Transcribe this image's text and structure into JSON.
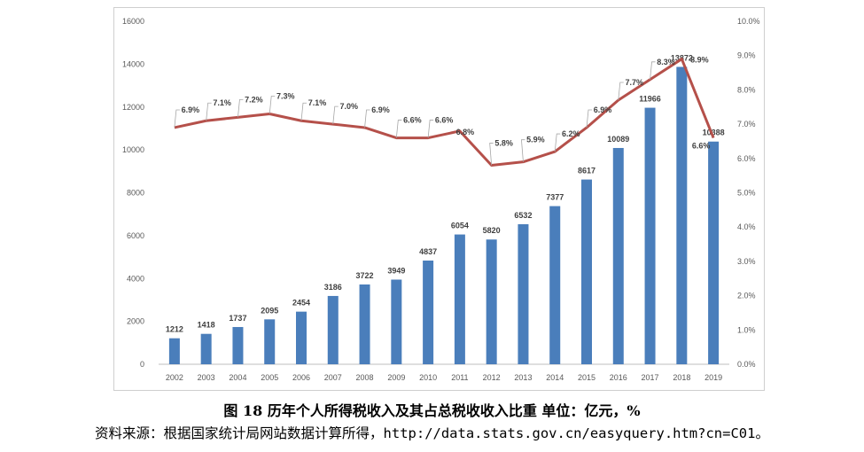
{
  "chart_data": {
    "type": "bar+line",
    "categories": [
      "2002",
      "2003",
      "2004",
      "2005",
      "2006",
      "2007",
      "2008",
      "2009",
      "2010",
      "2011",
      "2012",
      "2013",
      "2014",
      "2015",
      "2016",
      "2017",
      "2018",
      "2019"
    ],
    "series": [
      {
        "type": "bar",
        "axis": "left",
        "values": [
          1212,
          1418,
          1737,
          2095,
          2454,
          3186,
          3722,
          3949,
          4837,
          6054,
          5820,
          6532,
          7377,
          8617,
          10089,
          11966,
          13872,
          10388
        ],
        "color": "#4a7ebb"
      },
      {
        "type": "line",
        "axis": "right",
        "values": [
          6.9,
          7.1,
          7.2,
          7.3,
          7.1,
          7.0,
          6.9,
          6.6,
          6.6,
          6.8,
          5.8,
          5.9,
          6.2,
          6.9,
          7.7,
          8.3,
          8.9,
          6.6
        ],
        "labels": [
          "6.9%",
          "7.1%",
          "7.2%",
          "7.3%",
          "7.1%",
          "7.0%",
          "6.9%",
          "6.6%",
          "6.6%",
          "6.8%",
          "5.8%",
          "5.9%",
          "6.2%",
          "6.9%",
          "7.7%",
          "8.3%",
          "8.9%",
          "6.6%"
        ],
        "color": "#b5504a"
      }
    ],
    "left_axis": {
      "min": 0,
      "max": 16000,
      "step": 2000,
      "ticks": [
        "0",
        "2000",
        "4000",
        "6000",
        "8000",
        "10000",
        "12000",
        "14000",
        "16000"
      ]
    },
    "right_axis": {
      "min": 0,
      "max": 10,
      "step": 1,
      "ticks": [
        "0.0%",
        "1.0%",
        "2.0%",
        "3.0%",
        "4.0%",
        "5.0%",
        "6.0%",
        "7.0%",
        "8.0%",
        "9.0%",
        "10.0%"
      ]
    },
    "grid": false,
    "legend": "none"
  },
  "caption": "图 18   历年个人所得税收入及其占总税收收入比重 单位：亿元，%",
  "source": "资料来源：根据国家统计局网站数据计算所得，http://data.stats.gov.cn/easyquery.htm?cn=C01。"
}
